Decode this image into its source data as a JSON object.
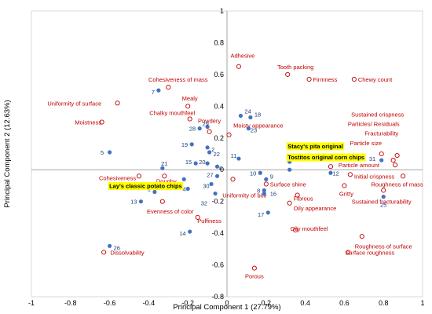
{
  "chart_data": {
    "type": "scatter",
    "xlabel": "Principal Component 1 (27.79%)",
    "ylabel": "Principal Component 2 (12.63%)",
    "xlim": [
      -1,
      1
    ],
    "ylim": [
      -0.8,
      1
    ],
    "x_ticks": [
      "-1",
      "-0.8",
      "-0.6",
      "-0.4",
      "-0.2",
      "0",
      "0.2",
      "0.4",
      "0.6",
      "0.8",
      "1"
    ],
    "y_ticks": [
      "1",
      "0.8",
      "0.6",
      "0.4",
      "0.2",
      "0",
      "-0.2",
      "-0.4",
      "-0.6",
      "-0.8"
    ],
    "grid": false,
    "colors": {
      "attributes": "#c00000",
      "samples": "#4472c4",
      "sample_labels": "#1f3d7a",
      "highlight": "#ffff00"
    },
    "attributes": [
      {
        "label": "Adhesive",
        "x": 0.06,
        "y": 0.65,
        "lx": 0.08,
        "ly": 0.72,
        "anchor": "middle"
      },
      {
        "label": "Tooth packing",
        "x": 0.31,
        "y": 0.6,
        "lx": 0.35,
        "ly": 0.65,
        "anchor": "middle"
      },
      {
        "label": "Firmness",
        "x": 0.42,
        "y": 0.57,
        "lx": 0.44,
        "ly": 0.57,
        "anchor": "start"
      },
      {
        "label": "Chewy count",
        "x": 0.65,
        "y": 0.57,
        "lx": 0.67,
        "ly": 0.57,
        "anchor": "start"
      },
      {
        "label": "Cohesiveness of mass",
        "x": -0.3,
        "y": 0.52,
        "lx": -0.25,
        "ly": 0.57,
        "anchor": "middle"
      },
      {
        "label": "Mealy",
        "x": -0.2,
        "y": 0.4,
        "lx": -0.19,
        "ly": 0.45,
        "anchor": "middle"
      },
      {
        "label": "Uniformity of surface",
        "x": -0.56,
        "y": 0.42,
        "lx": -0.78,
        "ly": 0.42,
        "anchor": "middle"
      },
      {
        "label": "Moistness",
        "x": -0.64,
        "y": 0.3,
        "lx": -0.71,
        "ly": 0.3,
        "anchor": "middle"
      },
      {
        "label": "Chalky mouthfeel",
        "x": -0.19,
        "y": 0.32,
        "lx": -0.28,
        "ly": 0.36,
        "anchor": "middle"
      },
      {
        "label": "Powdery",
        "x": -0.09,
        "y": 0.24,
        "lx": -0.09,
        "ly": 0.31,
        "anchor": "middle"
      },
      {
        "label": "Moisty appearance",
        "x": 0.01,
        "y": 0.22,
        "lx": 0.16,
        "ly": 0.28,
        "anchor": "middle"
      },
      {
        "label": "Sustained crispness",
        "x": 0.87,
        "y": 0.09,
        "lx": 0.77,
        "ly": 0.35,
        "anchor": "middle"
      },
      {
        "label": "Particles/ Residuals",
        "x": 0.85,
        "y": 0.06,
        "lx": 0.75,
        "ly": 0.29,
        "anchor": "middle"
      },
      {
        "label": "Fracturability",
        "x": 0.86,
        "y": 0.03,
        "lx": 0.79,
        "ly": 0.23,
        "anchor": "middle"
      },
      {
        "label": "Particle size",
        "x": 0.79,
        "y": 0.1,
        "lx": 0.71,
        "ly": 0.17,
        "anchor": "middle"
      },
      {
        "label": "Particle amount",
        "x": 0.53,
        "y": 0.02,
        "lx": 0.57,
        "ly": 0.03,
        "anchor": "start"
      },
      {
        "label": "Initial crispness",
        "x": 0.63,
        "y": -0.03,
        "lx": 0.65,
        "ly": -0.04,
        "anchor": "start"
      },
      {
        "label": "Roughness of mass",
        "x": 0.9,
        "y": -0.04,
        "lx": 0.87,
        "ly": -0.09,
        "anchor": "middle"
      },
      {
        "label": "Gritty",
        "x": 0.6,
        "y": -0.1,
        "lx": 0.61,
        "ly": -0.15,
        "anchor": "middle"
      },
      {
        "label": "Sustained fracturability",
        "x": 0.8,
        "y": -0.13,
        "lx": 0.79,
        "ly": -0.2,
        "anchor": "middle"
      },
      {
        "label": "Surface shine",
        "x": 0.2,
        "y": -0.09,
        "lx": 0.22,
        "ly": -0.09,
        "anchor": "start"
      },
      {
        "label": "Uniformity of bite",
        "x": 0.03,
        "y": -0.06,
        "lx": 0.09,
        "ly": -0.16,
        "anchor": "middle"
      },
      {
        "label": "Fibrous",
        "x": 0.36,
        "y": -0.16,
        "lx": 0.39,
        "ly": -0.18,
        "anchor": "middle"
      },
      {
        "label": "Oily appearance",
        "x": 0.32,
        "y": -0.21,
        "lx": 0.34,
        "ly": -0.24,
        "anchor": "start"
      },
      {
        "label": "Cohesiveness",
        "x": -0.45,
        "y": -0.04,
        "lx": -0.56,
        "ly": -0.05,
        "anchor": "middle"
      },
      {
        "label": "Doughy",
        "x": -0.32,
        "y": -0.04,
        "lx": -0.31,
        "ly": -0.07,
        "anchor": "middle"
      },
      {
        "label": "Evenness of color",
        "x": -0.33,
        "y": -0.2,
        "lx": -0.29,
        "ly": -0.26,
        "anchor": "middle"
      },
      {
        "label": "Puffiness",
        "x": -0.15,
        "y": -0.3,
        "lx": -0.09,
        "ly": -0.32,
        "anchor": "middle"
      },
      {
        "label": "Oily mouthfeel",
        "x": 0.35,
        "y": -0.38,
        "lx": 0.42,
        "ly": -0.37,
        "anchor": "middle"
      },
      {
        "label": "Roughness of surface",
        "x": 0.69,
        "y": -0.42,
        "lx": 0.8,
        "ly": -0.48,
        "anchor": "middle"
      },
      {
        "label": "Surface roughness",
        "x": 0.62,
        "y": -0.52,
        "lx": 0.73,
        "ly": -0.52,
        "anchor": "middle"
      },
      {
        "label": "Dissolvability",
        "x": -0.63,
        "y": -0.52,
        "lx": -0.51,
        "ly": -0.52,
        "anchor": "middle"
      },
      {
        "label": "Porous",
        "x": 0.14,
        "y": -0.62,
        "lx": 0.14,
        "ly": -0.67,
        "anchor": "middle"
      }
    ],
    "samples": [
      {
        "label": "1",
        "x": -0.37,
        "y": -0.14,
        "lx": -0.39,
        "ly": -0.12,
        "anchor": "end"
      },
      {
        "label": "2",
        "x": -0.1,
        "y": 0.14,
        "lx": -0.08,
        "ly": 0.13,
        "anchor": "start"
      },
      {
        "label": "4",
        "x": -0.2,
        "y": -0.12,
        "lx": -0.21,
        "ly": -0.12,
        "anchor": "end"
      },
      {
        "label": "5",
        "x": -0.6,
        "y": 0.11,
        "lx": -0.63,
        "ly": 0.11,
        "anchor": "end"
      },
      {
        "label": "6",
        "x": -0.05,
        "y": 0.02,
        "lx": -0.04,
        "ly": 0.01,
        "anchor": "start"
      },
      {
        "label": "7",
        "x": -0.35,
        "y": 0.5,
        "lx": -0.37,
        "ly": 0.49,
        "anchor": "end"
      },
      {
        "label": "8",
        "x": 0.19,
        "y": -0.13,
        "lx": 0.17,
        "ly": -0.13,
        "anchor": "end"
      },
      {
        "label": "9",
        "x": 0.2,
        "y": -0.06,
        "lx": 0.22,
        "ly": -0.04,
        "anchor": "start"
      },
      {
        "label": "10",
        "x": 0.17,
        "y": -0.02,
        "lx": 0.15,
        "ly": -0.02,
        "anchor": "end"
      },
      {
        "label": "11",
        "x": 0.06,
        "y": 0.07,
        "lx": 0.05,
        "ly": 0.09,
        "anchor": "end"
      },
      {
        "label": "12",
        "x": 0.53,
        "y": -0.02,
        "lx": 0.54,
        "ly": -0.02,
        "anchor": "start"
      },
      {
        "label": "13",
        "x": -0.44,
        "y": -0.2,
        "lx": -0.46,
        "ly": -0.2,
        "anchor": "end"
      },
      {
        "label": "14",
        "x": -0.19,
        "y": -0.39,
        "lx": -0.21,
        "ly": -0.4,
        "anchor": "end"
      },
      {
        "label": "15",
        "x": -0.16,
        "y": 0.04,
        "lx": -0.18,
        "ly": 0.05,
        "anchor": "end"
      },
      {
        "label": "16",
        "x": 0.19,
        "y": -0.15,
        "lx": 0.22,
        "ly": -0.15,
        "anchor": "start"
      },
      {
        "label": "17",
        "x": 0.21,
        "y": -0.27,
        "lx": 0.19,
        "ly": -0.28,
        "anchor": "end"
      },
      {
        "label": "18",
        "x": 0.12,
        "y": 0.33,
        "lx": 0.14,
        "ly": 0.35,
        "anchor": "start"
      },
      {
        "label": "19",
        "x": -0.18,
        "y": 0.16,
        "lx": -0.2,
        "ly": 0.16,
        "anchor": "end"
      },
      {
        "label": "20",
        "x": -0.1,
        "y": 0.04,
        "lx": -0.11,
        "ly": 0.05,
        "anchor": "end"
      },
      {
        "label": "21",
        "x": -0.33,
        "y": 0.01,
        "lx": -0.32,
        "ly": 0.04,
        "anchor": "middle"
      },
      {
        "label": "22",
        "x": -0.09,
        "y": 0.11,
        "lx": -0.07,
        "ly": 0.1,
        "anchor": "start"
      },
      {
        "label": "23",
        "x": 0.11,
        "y": 0.26,
        "lx": 0.12,
        "ly": 0.25,
        "anchor": "start"
      },
      {
        "label": "24",
        "x": 0.07,
        "y": 0.34,
        "lx": 0.09,
        "ly": 0.37,
        "anchor": "start"
      },
      {
        "label": "25",
        "x": 0.8,
        "y": -0.17,
        "lx": 0.8,
        "ly": -0.22,
        "anchor": "middle"
      },
      {
        "label": "26",
        "x": -0.6,
        "y": -0.48,
        "lx": -0.58,
        "ly": -0.49,
        "anchor": "start"
      },
      {
        "label": "27",
        "x": -0.05,
        "y": -0.04,
        "lx": -0.07,
        "ly": -0.03,
        "anchor": "end"
      },
      {
        "label": "28",
        "x": -0.14,
        "y": 0.26,
        "lx": -0.16,
        "ly": 0.26,
        "anchor": "end"
      },
      {
        "label": "29",
        "x": -0.1,
        "y": 0.27,
        "lx": -0.11,
        "ly": 0.29,
        "anchor": "middle"
      },
      {
        "label": "30",
        "x": -0.08,
        "y": -0.09,
        "lx": -0.09,
        "ly": -0.1,
        "anchor": "end"
      },
      {
        "label": "31",
        "x": 0.79,
        "y": 0.06,
        "lx": 0.76,
        "ly": 0.07,
        "anchor": "end"
      },
      {
        "label": "32",
        "x": -0.06,
        "y": -0.15,
        "lx": -0.1,
        "ly": -0.21,
        "anchor": "end"
      }
    ],
    "products": [
      {
        "label": "Stacy's pita original",
        "x": 0.32,
        "y": 0.05,
        "lx": 0.31,
        "ly": 0.15,
        "anchor": "start"
      },
      {
        "label": "Tostitos original corn chips",
        "x": 0.32,
        "y": 0.0,
        "lx": 0.31,
        "ly": 0.08,
        "anchor": "start"
      },
      {
        "label": "Lay's classic potato chips",
        "x": -0.22,
        "y": -0.06,
        "lx": -0.23,
        "ly": -0.1,
        "anchor": "end"
      }
    ]
  }
}
